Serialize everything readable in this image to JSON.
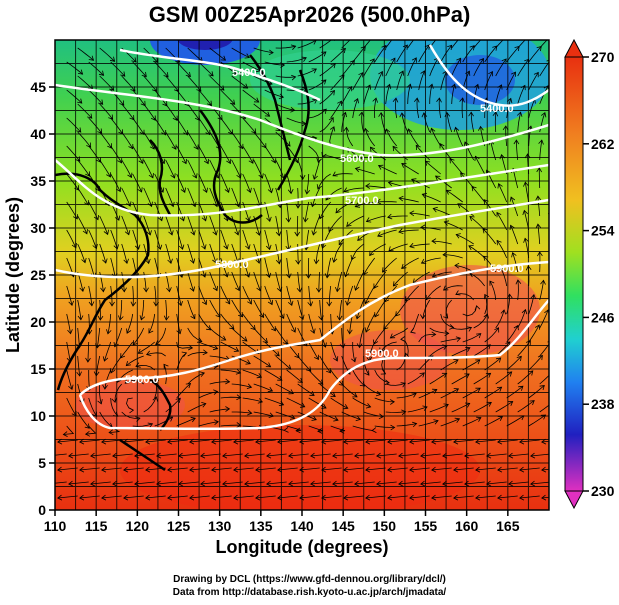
{
  "title": "GSM 00Z25Apr2026 (500.0hPa)",
  "x_axis": {
    "label": "Longitude (degrees)",
    "min": 110,
    "max": 170,
    "ticks": [
      110,
      115,
      120,
      125,
      130,
      135,
      140,
      145,
      150,
      155,
      160,
      165
    ]
  },
  "y_axis": {
    "label": "Latitude  (degrees)",
    "min": 0,
    "max": 50,
    "ticks": [
      0,
      5,
      10,
      15,
      20,
      25,
      30,
      35,
      40,
      45
    ]
  },
  "colorbar": {
    "min": 230,
    "max": 270,
    "tick_labels": [
      "270",
      "262",
      "254",
      "246",
      "238",
      "230"
    ],
    "colors": [
      "#e0307a",
      "#2020c0",
      "#20a0f0",
      "#30e060",
      "#a0e020",
      "#f0c020",
      "#f08020",
      "#e02010"
    ]
  },
  "contour_labels": [
    "5400.0",
    "5400.0",
    "5600.0",
    "5700.0",
    "5800.0",
    "5900.0",
    "5900.0",
    "5900.0"
  ],
  "credits": {
    "line1": "Drawing by DCL (https://www.gfd-dennou.org/library/dcl/)",
    "line2": "Data from http://database.rish.kyoto-u.ac.jp/arch/jmadata/"
  }
}
